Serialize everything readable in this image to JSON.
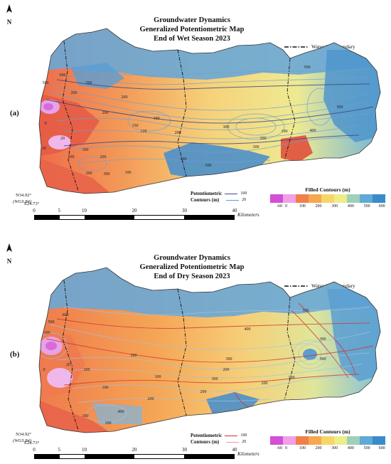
{
  "panels": [
    {
      "id": "a",
      "label": "(a)",
      "title": [
        "Groundwater Dynamics",
        "Generalized Potentiometric Map",
        "End of Wet Season 2023"
      ],
      "contour_labels": [
        "600",
        "500",
        "200",
        "500",
        "200",
        "100",
        "150",
        "120",
        "200",
        "300",
        "200",
        "20",
        "0",
        "100",
        "100",
        "200",
        "300",
        "100",
        "200",
        "400",
        "500",
        "300",
        "200",
        "100",
        "500",
        "500",
        "400",
        "20"
      ],
      "contour_legend": {
        "title_line1": "Potentiometric",
        "title_line2": "Contours (m)",
        "major": "100",
        "minor": "20",
        "major_color": "#3b4a8a",
        "minor_color": "#5a9bd6"
      }
    },
    {
      "id": "b",
      "label": "(b)",
      "title": [
        "Groundwater Dynamics",
        "Generalized Potentiometric Map",
        "End of Dry Season 2023"
      ],
      "contour_labels": [
        "600",
        "500",
        "100",
        "200",
        "100",
        "200",
        "300",
        "400",
        "300",
        "200",
        "100",
        "200",
        "0",
        "100",
        "400",
        "500",
        "300",
        "200",
        "100",
        "500",
        "200",
        "100",
        "20"
      ],
      "contour_legend": {
        "title_line1": "Potentiometric",
        "title_line2": "Contours (m)",
        "major": "100",
        "minor": "20",
        "major_color": "#d03030",
        "minor_color": "#ef9a9a"
      }
    }
  ],
  "north": "N",
  "watershed_label": "Watershed boundary",
  "coords": {
    "lat": "N34.92°",
    "datum": "(WGS 84)",
    "lon": "E24.73°"
  },
  "filled_legend": {
    "title": "Filled Contours (m)",
    "ticks": [
      "-60",
      "0",
      "100",
      "200",
      "300",
      "400",
      "500",
      "600"
    ],
    "colors": [
      "#d24fd8",
      "#f0a0e6",
      "#f0804a",
      "#f5a84f",
      "#f7d56b",
      "#eded8a",
      "#9fd0b8",
      "#5faad6",
      "#3a8cc8"
    ]
  },
  "scale_bar": {
    "ticks": [
      "0",
      "5",
      "10",
      "20",
      "30",
      "40"
    ],
    "unit": "Kilometers"
  }
}
